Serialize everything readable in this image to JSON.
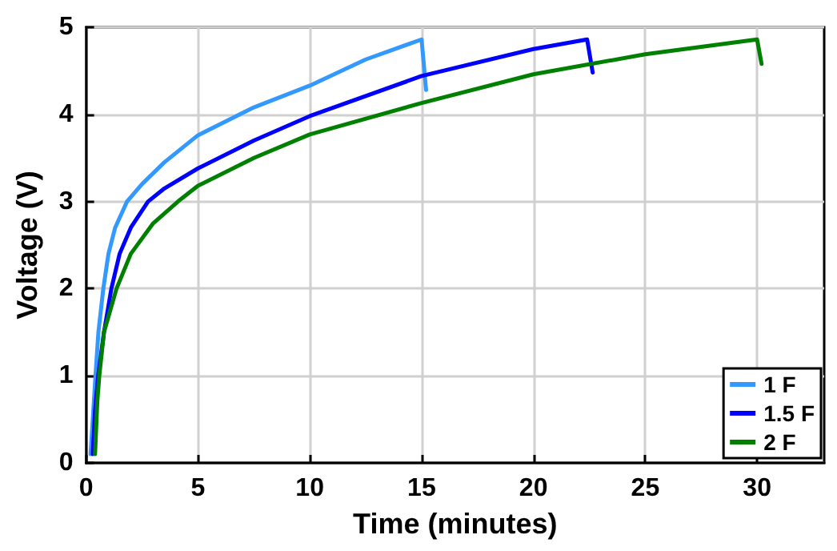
{
  "chart_data": {
    "type": "line",
    "xlabel": "Time (minutes)",
    "ylabel": "Voltage (V)",
    "xlim": [
      0,
      33
    ],
    "xticks": [
      0,
      5,
      10,
      15,
      20,
      25,
      30
    ],
    "ylim": [
      0,
      5
    ],
    "yticks": [
      0,
      1,
      2,
      3,
      4,
      5
    ],
    "grid": true,
    "legend": "bottom right",
    "marker": "none",
    "line_style": "solid",
    "series": [
      {
        "name": "1 F",
        "color": "#3399ff",
        "x": [
          0.2,
          0.3,
          0.42,
          0.55,
          0.77,
          1.0,
          1.3,
          1.83,
          2.5,
          3.5,
          5,
          7.5,
          10,
          12.5,
          15,
          15.2
        ],
        "values": [
          0.1,
          0.5,
          1,
          1.5,
          2,
          2.4,
          2.7,
          3,
          3.2,
          3.45,
          3.76,
          4.08,
          4.33,
          4.63,
          4.86,
          4.28
        ]
      },
      {
        "name": "1.5 F",
        "color": "#0000ff",
        "x": [
          0.3,
          0.4,
          0.54,
          0.8,
          1.13,
          1.5,
          2,
          2.77,
          3.5,
          5,
          7.5,
          10,
          15,
          20,
          22.4,
          22.65
        ],
        "values": [
          0.1,
          0.6,
          1,
          1.5,
          2,
          2.4,
          2.7,
          3,
          3.15,
          3.38,
          3.7,
          3.98,
          4.44,
          4.75,
          4.86,
          4.48
        ]
      },
      {
        "name": "2 F",
        "color": "#008000",
        "x": [
          0.4,
          0.5,
          0.59,
          0.8,
          1.36,
          2,
          3,
          4.2,
          5,
          7.5,
          10,
          15,
          20,
          25,
          30,
          30.2
        ],
        "values": [
          0.1,
          0.7,
          1,
          1.5,
          2,
          2.4,
          2.75,
          3.02,
          3.18,
          3.5,
          3.77,
          4.13,
          4.46,
          4.69,
          4.86,
          4.58
        ]
      }
    ]
  }
}
